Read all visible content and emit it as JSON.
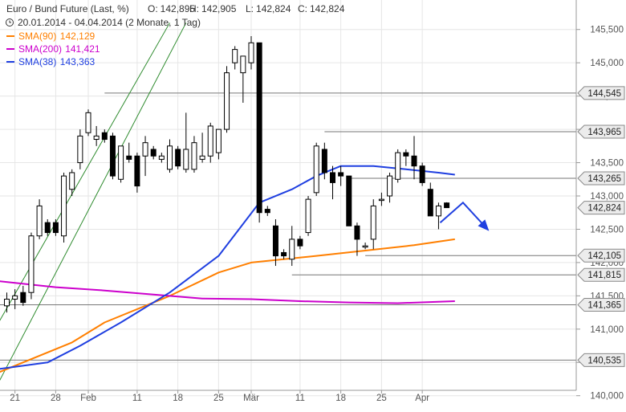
{
  "header": {
    "title_line": "Euro / Bund Future (Last, %)",
    "o_label": "O:",
    "o_value": "142,895",
    "h_label": "H:",
    "h_value": "142,905",
    "l_label": "L:",
    "l_value": "142,824",
    "c_label": "C:",
    "c_value": "142,824",
    "range_text": "20.01.2014 - 04.04.2014 (2 Monate, 1 Tag)",
    "clock_icon": "clock-icon"
  },
  "chart_data": {
    "type": "candlestick",
    "title": "Euro / Bund Future (Last, %)",
    "period": "20.01.2014 - 04.04.2014 (2 Monate, 1 Tag)",
    "ohlc_latest": {
      "open": 142.895,
      "high": 142.905,
      "low": 142.824,
      "close": 142.824
    },
    "y_range": [
      139.9,
      145.75
    ],
    "y_ticks": [
      {
        "value": 140.0,
        "label": "140,000"
      },
      {
        "value": 140.5,
        "label": "140,500"
      },
      {
        "value": 141.0,
        "label": "141,000"
      },
      {
        "value": 141.5,
        "label": "141,500"
      },
      {
        "value": 142.0,
        "label": "142,000"
      },
      {
        "value": 142.5,
        "label": "142,500"
      },
      {
        "value": 143.0,
        "label": "143,000"
      },
      {
        "value": 143.5,
        "label": "143,500"
      },
      {
        "value": 144.0,
        "label": "144,000"
      },
      {
        "value": 144.5,
        "label": "144,500"
      },
      {
        "value": 145.0,
        "label": "145,000"
      },
      {
        "value": 145.5,
        "label": "145,500"
      }
    ],
    "x_ticks": [
      {
        "index": 1,
        "label": "21"
      },
      {
        "index": 6,
        "label": "28"
      },
      {
        "index": 10,
        "label": "Feb"
      },
      {
        "index": 16,
        "label": "11"
      },
      {
        "index": 21,
        "label": "18"
      },
      {
        "index": 26,
        "label": "25"
      },
      {
        "index": 30,
        "label": "Mär"
      },
      {
        "index": 36,
        "label": "11"
      },
      {
        "index": 41,
        "label": "18"
      },
      {
        "index": 46,
        "label": "25"
      },
      {
        "index": 51,
        "label": "Apr"
      }
    ],
    "candles": [
      [
        141.35,
        141.55,
        141.25,
        141.45
      ],
      [
        141.45,
        141.6,
        141.3,
        141.5
      ],
      [
        141.55,
        141.65,
        141.35,
        141.4
      ],
      [
        141.55,
        142.45,
        141.45,
        142.4
      ],
      [
        142.4,
        142.95,
        142.35,
        142.85
      ],
      [
        142.6,
        142.65,
        142.4,
        142.45
      ],
      [
        142.6,
        142.65,
        142.4,
        142.45
      ],
      [
        142.4,
        143.35,
        142.3,
        143.3
      ],
      [
        143.1,
        143.4,
        143.0,
        143.35
      ],
      [
        143.5,
        144.0,
        143.4,
        143.9
      ],
      [
        143.95,
        144.3,
        143.9,
        144.25
      ],
      [
        143.85,
        144.05,
        143.75,
        143.9
      ],
      [
        143.95,
        144.0,
        143.8,
        143.85
      ],
      [
        143.9,
        143.95,
        143.25,
        143.3
      ],
      [
        143.25,
        143.75,
        143.2,
        143.75
      ],
      [
        143.6,
        143.8,
        143.5,
        143.55
      ],
      [
        143.6,
        143.65,
        143.05,
        143.15
      ],
      [
        143.6,
        143.9,
        143.3,
        143.8
      ],
      [
        143.7,
        143.75,
        143.55,
        143.6
      ],
      [
        143.55,
        143.65,
        143.5,
        143.6
      ],
      [
        143.4,
        143.85,
        143.35,
        143.75
      ],
      [
        143.7,
        143.75,
        143.4,
        143.45
      ],
      [
        143.4,
        144.25,
        143.35,
        143.7
      ],
      [
        143.4,
        143.9,
        143.35,
        143.8
      ],
      [
        143.55,
        143.95,
        143.5,
        143.6
      ],
      [
        143.6,
        144.1,
        143.5,
        144.05
      ],
      [
        143.65,
        144.0,
        143.55,
        144.0
      ],
      [
        144.0,
        144.95,
        143.95,
        144.85
      ],
      [
        145.0,
        145.25,
        144.9,
        145.2
      ],
      [
        144.85,
        145.1,
        144.4,
        145.1
      ],
      [
        145.0,
        145.4,
        144.9,
        145.3
      ],
      [
        145.3,
        145.3,
        142.6,
        142.75
      ],
      [
        142.8,
        142.85,
        142.7,
        142.75
      ],
      [
        142.55,
        142.65,
        141.95,
        142.1
      ],
      [
        142.15,
        142.2,
        142.05,
        142.1
      ],
      [
        142.05,
        142.55,
        141.95,
        142.35
      ],
      [
        142.35,
        142.4,
        142.2,
        142.25
      ],
      [
        142.45,
        143.0,
        142.4,
        142.95
      ],
      [
        143.05,
        143.8,
        143.0,
        143.75
      ],
      [
        143.7,
        143.8,
        143.25,
        143.35
      ],
      [
        143.35,
        143.45,
        142.95,
        143.2
      ],
      [
        143.35,
        143.45,
        143.15,
        143.3
      ],
      [
        143.3,
        143.3,
        142.55,
        142.55
      ],
      [
        142.55,
        142.6,
        142.1,
        142.35
      ],
      [
        142.25,
        142.3,
        142.2,
        142.25
      ],
      [
        142.35,
        142.95,
        142.2,
        142.85
      ],
      [
        142.95,
        143.05,
        142.85,
        142.95
      ],
      [
        143.0,
        143.35,
        142.9,
        143.3
      ],
      [
        143.25,
        143.7,
        143.2,
        143.65
      ],
      [
        143.65,
        143.7,
        143.45,
        143.6
      ],
      [
        143.6,
        143.9,
        143.25,
        143.45
      ],
      [
        143.45,
        143.5,
        143.15,
        143.2
      ],
      [
        143.1,
        143.2,
        142.7,
        142.7
      ],
      [
        142.7,
        142.9,
        142.5,
        142.85
      ],
      [
        142.895,
        142.905,
        142.824,
        142.824
      ]
    ],
    "series": [
      {
        "name": "SMA(90)",
        "value_label": "142,129",
        "color": "#ff7f00",
        "points": [
          [
            -1,
            140.35
          ],
          [
            8,
            140.8
          ],
          [
            12,
            141.1
          ],
          [
            20,
            141.5
          ],
          [
            26,
            141.85
          ],
          [
            30,
            142.0
          ],
          [
            38,
            142.1
          ],
          [
            44,
            142.18
          ],
          [
            50,
            142.26
          ],
          [
            55,
            142.35
          ]
        ]
      },
      {
        "name": "SMA(200)",
        "value_label": "141,421",
        "color": "#cc00cc",
        "points": [
          [
            -1,
            141.72
          ],
          [
            6,
            141.63
          ],
          [
            12,
            141.58
          ],
          [
            18,
            141.52
          ],
          [
            24,
            141.46
          ],
          [
            30,
            141.45
          ],
          [
            36,
            141.42
          ],
          [
            42,
            141.4
          ],
          [
            48,
            141.39
          ],
          [
            55,
            141.42
          ]
        ]
      },
      {
        "name": "SMA(38)",
        "value_label": "143,363",
        "color": "#1f3fe0",
        "points": [
          [
            -1,
            140.4
          ],
          [
            5,
            140.5
          ],
          [
            9,
            140.75
          ],
          [
            14,
            141.1
          ],
          [
            20,
            141.55
          ],
          [
            26,
            142.1
          ],
          [
            31,
            142.9
          ],
          [
            35,
            143.1
          ],
          [
            38,
            143.3
          ],
          [
            41,
            143.45
          ],
          [
            45,
            143.45
          ],
          [
            49,
            143.4
          ],
          [
            53,
            143.35
          ],
          [
            55,
            143.32
          ]
        ]
      }
    ],
    "trend_channel": {
      "color": "#2e8b2e",
      "lines": [
        [
          [
            -1,
            141.1
          ],
          [
            20,
            145.6
          ]
        ],
        [
          [
            -1,
            140.2
          ],
          [
            22,
            145.6
          ]
        ]
      ]
    },
    "horizontal_levels": [
      {
        "value": 144.545,
        "label": "144,545",
        "from_index": 12
      },
      {
        "value": 143.965,
        "label": "143,965",
        "from_index": 39
      },
      {
        "value": 143.265,
        "label": "143,265",
        "from_index": 42
      },
      {
        "value": 142.105,
        "label": "142,105",
        "from_index": 44
      },
      {
        "value": 141.815,
        "label": "141,815",
        "from_index": 35
      },
      {
        "value": 141.365,
        "label": "141,365",
        "from_index": -1
      },
      {
        "value": 140.535,
        "label": "140,535",
        "from_index": -1
      }
    ],
    "current_price": {
      "value": 142.824,
      "label": "142,824"
    },
    "forecast_arrow": {
      "color": "#1f3fe0",
      "points": [
        [
          53.2,
          142.6
        ],
        [
          56,
          142.9
        ],
        [
          59,
          142.5
        ]
      ]
    }
  }
}
